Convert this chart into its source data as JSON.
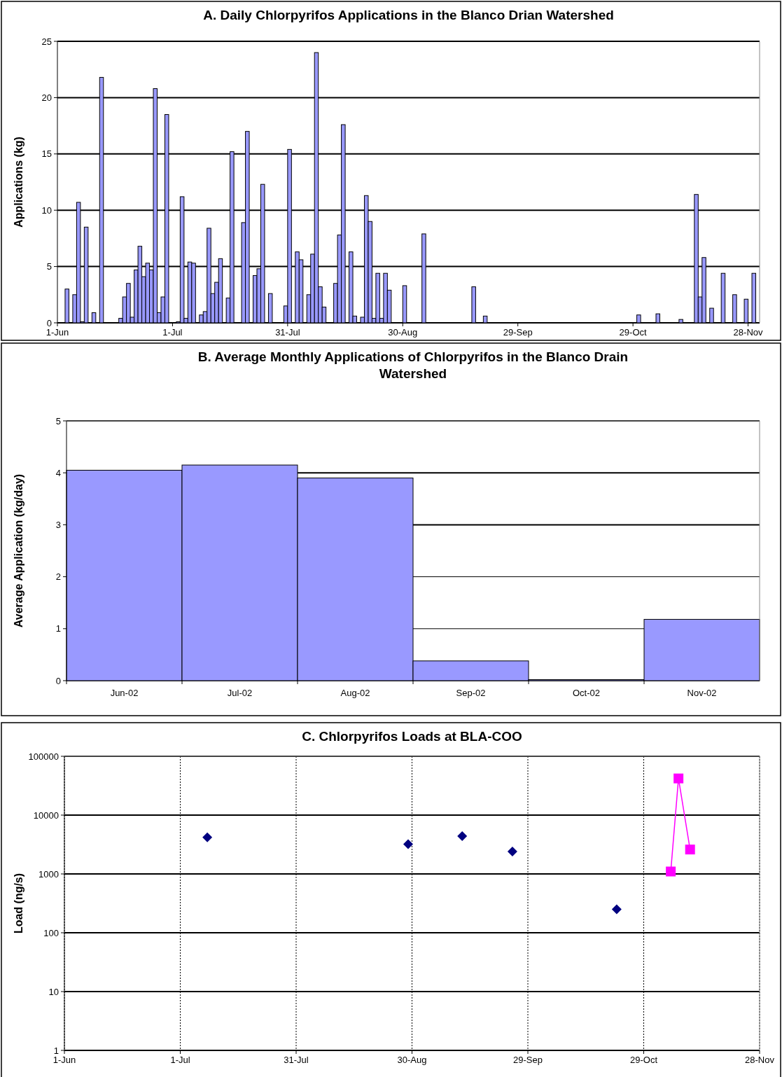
{
  "chart_data": [
    {
      "type": "bar",
      "title": "A. Daily Chlorpyrifos Applications in the Blanco Drian Watershed",
      "ylabel": "Applications (kg)",
      "color": "#9999ff",
      "grid": "y",
      "x": [
        "--06-03",
        "--06-05",
        "--06-06",
        "--06-07",
        "--06-08",
        "--06-10",
        "--06-12",
        "--06-17",
        "--06-18",
        "--06-19",
        "--06-20",
        "--06-21",
        "--06-22",
        "--06-23",
        "--06-24",
        "--06-25",
        "--06-26",
        "--06-27",
        "--06-28",
        "--06-29",
        "--07-02",
        "--07-03",
        "--07-04",
        "--07-05",
        "--07-06",
        "--07-08",
        "--07-09",
        "--07-10",
        "--07-11",
        "--07-12",
        "--07-13",
        "--07-15",
        "--07-16",
        "--07-19",
        "--07-20",
        "--07-22",
        "--07-23",
        "--07-24",
        "--07-26",
        "--07-30",
        "--07-31",
        "--08-02",
        "--08-03",
        "--08-05",
        "--08-06",
        "--08-07",
        "--08-08",
        "--08-09",
        "--08-12",
        "--08-13",
        "--08-14",
        "--08-16",
        "--08-17",
        "--08-19",
        "--08-20",
        "--08-21",
        "--08-22",
        "--08-23",
        "--08-24",
        "--08-25",
        "--08-26",
        "--08-30",
        "--09-04",
        "--09-17",
        "--09-20",
        "--10-30",
        "--11-04",
        "--11-10",
        "--11-14",
        "--11-15",
        "--11-16",
        "--11-18",
        "--11-21",
        "--11-24",
        "--11-27",
        "--11-29"
      ],
      "values": [
        3.0,
        2.5,
        10.7,
        0.1,
        8.5,
        0.9,
        21.8,
        0.4,
        2.3,
        3.5,
        0.5,
        4.7,
        6.8,
        4.1,
        5.3,
        4.7,
        20.8,
        0.9,
        2.3,
        18.5,
        0.1,
        11.2,
        0.4,
        5.4,
        5.3,
        0.7,
        1.0,
        8.4,
        2.6,
        3.6,
        5.7,
        2.2,
        15.2,
        8.9,
        17.0,
        4.2,
        4.8,
        12.3,
        2.6,
        1.5,
        15.4,
        6.3,
        5.6,
        2.5,
        6.1,
        24.0,
        3.2,
        1.4,
        3.5,
        7.8,
        17.6,
        6.3,
        0.6,
        0.5,
        11.3,
        9.0,
        0.4,
        4.4,
        0.4,
        4.4,
        2.9,
        3.3,
        7.9,
        3.2,
        0.6,
        0.7,
        0.8,
        0.3,
        11.4,
        2.3,
        5.8,
        1.3,
        4.4,
        2.5,
        2.1,
        4.4
      ],
      "xlim": [
        "--06-01",
        "--12-01"
      ],
      "xticks": [
        {
          "value": "--06-01",
          "label": "1-Jun"
        },
        {
          "value": "--07-01",
          "label": "1-Jul"
        },
        {
          "value": "--07-31",
          "label": "31-Jul"
        },
        {
          "value": "--08-30",
          "label": "30-Aug"
        },
        {
          "value": "--09-29",
          "label": "29-Sep"
        },
        {
          "value": "--10-29",
          "label": "29-Oct"
        },
        {
          "value": "--11-28",
          "label": "28-Nov"
        }
      ],
      "ylim": [
        0,
        25
      ],
      "yticks": [
        0,
        5,
        10,
        15,
        20,
        25
      ]
    },
    {
      "type": "bar",
      "title": "B. Average Monthly Applications of Chlorpyrifos in the Blanco Drain Watershed",
      "ylabel": "Average Application (kg/day)",
      "color": "#9999ff",
      "grid": "y",
      "categories": [
        "Jun-02",
        "Jul-02",
        "Aug-02",
        "Sep-02",
        "Oct-02",
        "Nov-02"
      ],
      "values": [
        4.05,
        4.15,
        3.9,
        0.38,
        0.02,
        1.18
      ],
      "ylim": [
        0,
        5
      ],
      "yticks": [
        0,
        1,
        2,
        3,
        4,
        5
      ]
    },
    {
      "type": "scatter",
      "title": "C. Chlorpyrifos Loads at BLA-COO",
      "ylabel": "Load (ng/s)",
      "grid": true,
      "log": "y",
      "series": [
        {
          "type": "scatter",
          "color": "#000080",
          "marker": "diamond",
          "x": [
            "--07-08",
            "--08-29",
            "--09-12",
            "--09-25",
            "--10-22"
          ],
          "values": [
            4200,
            3200,
            4400,
            2400,
            250
          ]
        },
        {
          "type": "line",
          "color": "#ff00ff",
          "marker": "square",
          "x": [
            "--11-05",
            "--11-07",
            "--11-10"
          ],
          "values": [
            1100,
            42000,
            2600
          ]
        }
      ],
      "xlim": [
        "--06-01",
        "--11-28"
      ],
      "xticks": [
        {
          "value": "--06-01",
          "label": "1-Jun"
        },
        {
          "value": "--07-01",
          "label": "1-Jul"
        },
        {
          "value": "--07-31",
          "label": "31-Jul"
        },
        {
          "value": "--08-30",
          "label": "30-Aug"
        },
        {
          "value": "--09-29",
          "label": "29-Sep"
        },
        {
          "value": "--10-29",
          "label": "29-Oct"
        },
        {
          "value": "--11-28",
          "label": "28-Nov"
        }
      ],
      "ylim": [
        1,
        100000
      ],
      "yticks": [
        1,
        10,
        100,
        1000,
        10000,
        100000
      ]
    }
  ]
}
